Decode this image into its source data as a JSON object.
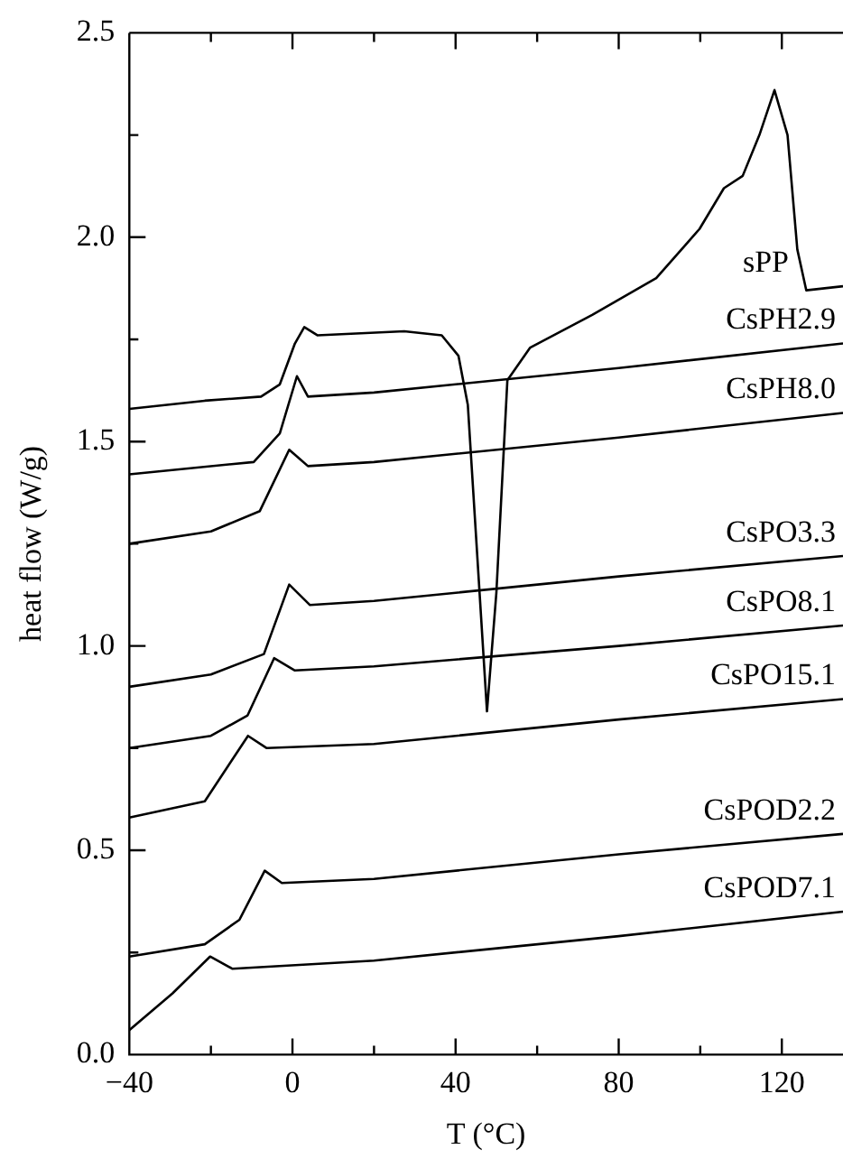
{
  "chart_data": {
    "type": "line",
    "xlabel": "T (°C)",
    "ylabel": "heat flow (W/g)",
    "xlim": [
      -40,
      135
    ],
    "ylim": [
      0,
      2.5
    ],
    "xticks": [
      {
        "value": -40,
        "label": "−40"
      },
      {
        "value": -20,
        "label": null
      },
      0,
      {
        "value": 20,
        "label": null
      },
      40,
      {
        "value": 60,
        "label": null
      },
      80,
      {
        "value": 100,
        "label": null
      },
      120
    ],
    "yticks": [
      {
        "value": 0,
        "label": "0.0"
      },
      {
        "value": 0.25,
        "label": null
      },
      {
        "value": 0.5,
        "label": "0.5"
      },
      {
        "value": 0.75,
        "label": null
      },
      {
        "value": 1,
        "label": "1.0"
      },
      {
        "value": 1.25,
        "label": null
      },
      {
        "value": 1.5,
        "label": "1.5"
      },
      {
        "value": 1.75,
        "label": null
      },
      {
        "value": 2,
        "label": "2.0"
      },
      {
        "value": 2.25,
        "label": null
      },
      {
        "value": 2.5,
        "label": "2.5"
      }
    ],
    "grid": false,
    "legend": false,
    "marker": "none",
    "line_style": "solid",
    "series": [
      {
        "name": "sPP",
        "color": "#000000",
        "x": [
          -40,
          -21.5,
          -7.7,
          -3.1,
          0.6,
          2.9,
          6.1,
          27.4,
          36.6,
          40.7,
          43,
          47.7,
          50,
          52.7,
          58.3,
          73.5,
          89.2,
          99.8,
          105.8,
          110.4,
          114.5,
          118.2,
          121.4,
          123.8,
          126,
          135
        ],
        "values": [
          1.58,
          1.6,
          1.61,
          1.64,
          1.74,
          1.78,
          1.76,
          1.77,
          1.76,
          1.71,
          1.59,
          0.84,
          1.13,
          1.65,
          1.73,
          1.81,
          1.9,
          2.02,
          2.12,
          2.15,
          2.25,
          2.36,
          2.25,
          1.97,
          1.87,
          1.88
        ]
      },
      {
        "name": "CsPH2.9",
        "color": "#000000",
        "x": [
          -40,
          -9.5,
          -3.1,
          1.1,
          3.8,
          20,
          80,
          135
        ],
        "values": [
          1.42,
          1.45,
          1.52,
          1.66,
          1.61,
          1.62,
          1.68,
          1.74
        ]
      },
      {
        "name": "CsPH8.0",
        "color": "#000000",
        "x": [
          -40,
          -20,
          -8,
          -0.8,
          3.8,
          20,
          80,
          135
        ],
        "values": [
          1.25,
          1.28,
          1.33,
          1.48,
          1.44,
          1.45,
          1.51,
          1.57
        ]
      },
      {
        "name": "CsPO3.3",
        "color": "#000000",
        "x": [
          -40,
          -20,
          -7,
          -0.8,
          4.3,
          20,
          80,
          135
        ],
        "values": [
          0.9,
          0.93,
          0.98,
          1.15,
          1.1,
          1.11,
          1.17,
          1.22
        ]
      },
      {
        "name": "CsPO8.1",
        "color": "#000000",
        "x": [
          -40,
          -20,
          -11,
          -4.5,
          0.6,
          20,
          80,
          135
        ],
        "values": [
          0.75,
          0.78,
          0.83,
          0.97,
          0.94,
          0.95,
          1.0,
          1.05
        ]
      },
      {
        "name": "CsPO15.1",
        "color": "#000000",
        "x": [
          -40,
          -21.5,
          -10.9,
          -6.3,
          20,
          80,
          135
        ],
        "values": [
          0.58,
          0.62,
          0.78,
          0.75,
          0.76,
          0.82,
          0.87
        ]
      },
      {
        "name": "CsPOD2.2",
        "color": "#000000",
        "x": [
          -40,
          -21.5,
          -13,
          -6.8,
          -2.6,
          20,
          80,
          135
        ],
        "values": [
          0.24,
          0.27,
          0.33,
          0.45,
          0.42,
          0.43,
          0.49,
          0.54
        ]
      },
      {
        "name": "CsPOD7.1",
        "color": "#000000",
        "x": [
          -40,
          -29.4,
          -20.2,
          -14.7,
          20,
          80,
          135
        ],
        "values": [
          0.06,
          0.15,
          0.24,
          0.21,
          0.23,
          0.29,
          0.35
        ]
      }
    ]
  }
}
